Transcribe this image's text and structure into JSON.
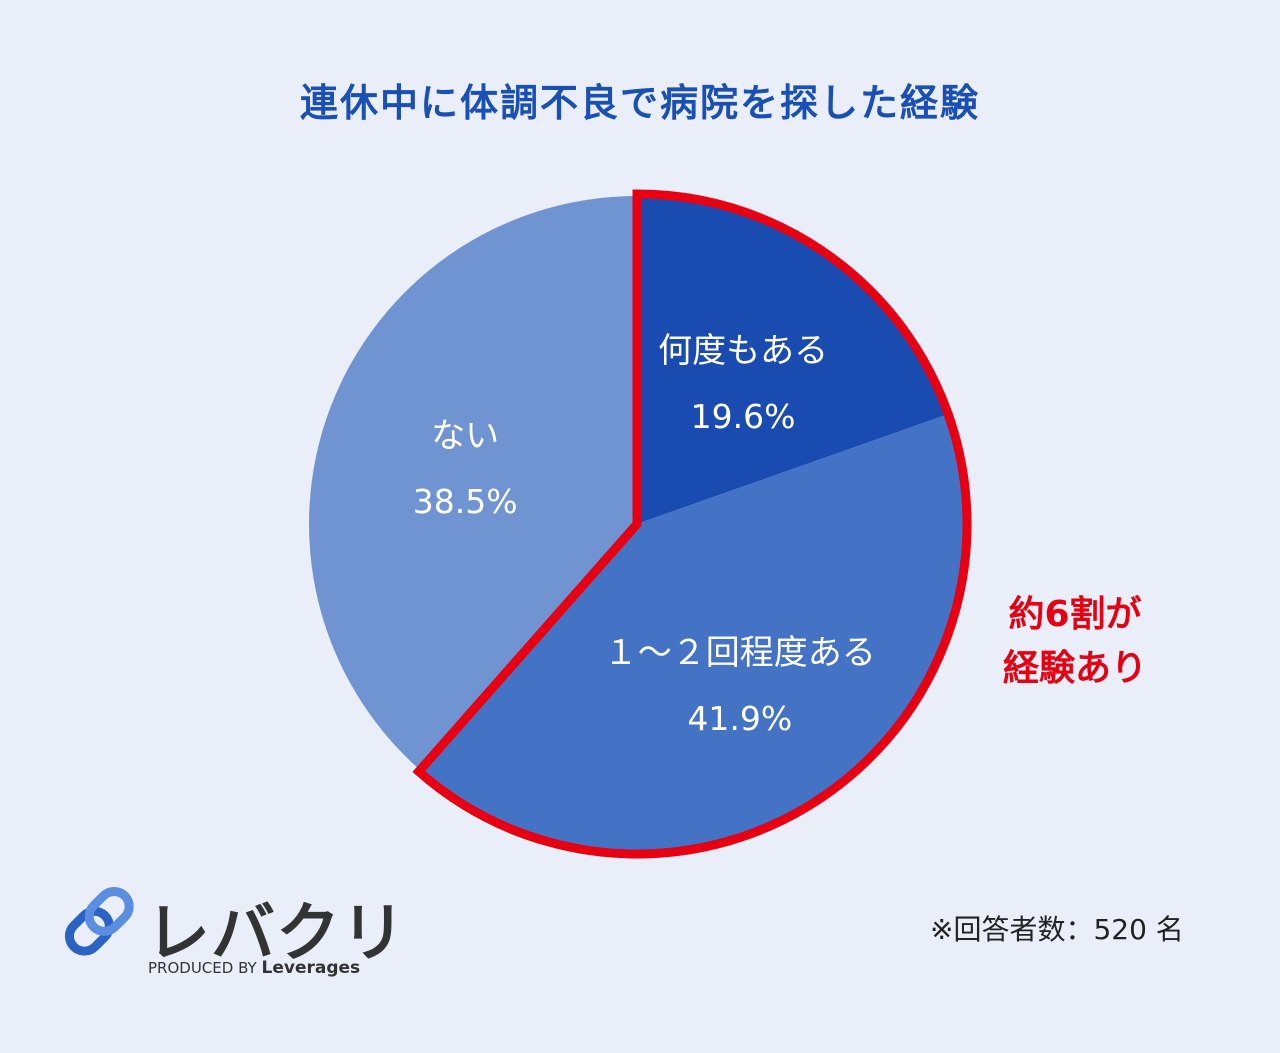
{
  "chart_data": {
    "type": "pie",
    "title": "連休中に体調不良で病院を探した経験",
    "slices": [
      {
        "label": "何度もある",
        "value": 19.6,
        "display": "19.6%",
        "color": "#1a4bb0"
      },
      {
        "label": "１～２回程度ある",
        "value": 41.9,
        "display": "41.9%",
        "color": "#4472c4"
      },
      {
        "label": "ない",
        "value": 38.5,
        "display": "38.5%",
        "color": "#7094d2"
      }
    ],
    "start_angle_deg": 0,
    "direction": "clockwise",
    "highlight": {
      "slices": [
        0,
        1
      ],
      "color": "#e60012",
      "callout_lines": [
        "約6割が",
        "経験あり"
      ]
    }
  },
  "brand": {
    "name": "レバクリ",
    "produced_by": "PRODUCED BY",
    "company": "Leverages"
  },
  "note": "※回答者数：520 名"
}
